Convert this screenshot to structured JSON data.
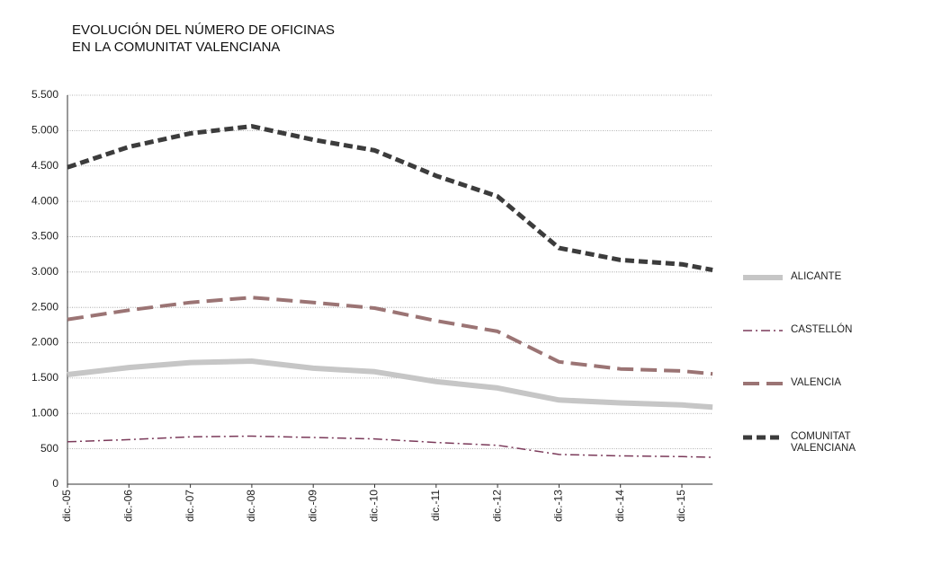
{
  "chart_data": {
    "type": "line",
    "title": [
      "EVOLUCIÓN DEL NÚMERO DE OFICINAS",
      "EN LA COMUNITAT VALENCIANA"
    ],
    "categories": [
      "dic.-05",
      "dic.-06",
      "dic.-07",
      "dic.-08",
      "dic.-09",
      "dic.-10",
      "dic.-11",
      "dic.-12",
      "dic.-13",
      "dic.-14",
      "dic.-15",
      null
    ],
    "series": [
      {
        "name": "ALICANTE",
        "color": "#c6c6c6",
        "values": [
          1550,
          1650,
          1720,
          1740,
          1640,
          1590,
          1450,
          1360,
          1190,
          1150,
          1120,
          1090
        ]
      },
      {
        "name": "CASTELLÓN",
        "color": "#7b3a5a",
        "values": [
          600,
          630,
          670,
          680,
          660,
          640,
          590,
          550,
          420,
          400,
          390,
          380
        ]
      },
      {
        "name": "VALENCIA",
        "color": "#9b7474",
        "values": [
          2330,
          2460,
          2570,
          2640,
          2570,
          2490,
          2310,
          2160,
          1730,
          1630,
          1600,
          1560
        ]
      },
      {
        "name": "COMUNITAT VALENCIANA",
        "color": "#3c3c3c",
        "values": [
          4480,
          4770,
          4960,
          5060,
          4870,
          4720,
          4360,
          4070,
          3340,
          3170,
          3110,
          3030
        ]
      }
    ],
    "ylim": [
      0,
      5500
    ],
    "yticks": [
      0,
      500,
      {
        "value": 1000,
        "label": "1.000"
      },
      {
        "value": 1500,
        "label": "1.500"
      },
      {
        "value": 2000,
        "label": "2.000"
      },
      {
        "value": 2500,
        "label": "2.500"
      },
      {
        "value": 3000,
        "label": "3.000"
      },
      {
        "value": 3500,
        "label": "3.500"
      },
      {
        "value": 4000,
        "label": "4.000"
      },
      {
        "value": 4500,
        "label": "4.500"
      },
      {
        "value": 5000,
        "label": "5.000"
      },
      {
        "value": 5500,
        "label": "5.500"
      }
    ],
    "grid": true,
    "legend": "right"
  }
}
